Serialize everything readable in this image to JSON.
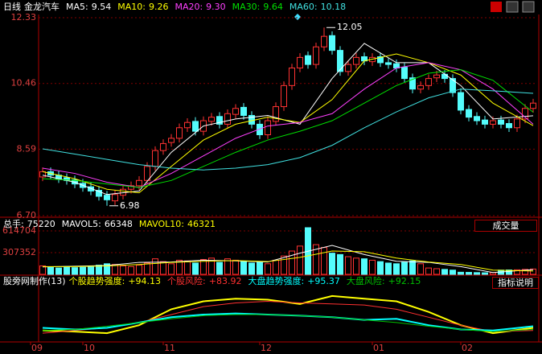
{
  "chart_data": [
    {
      "type": "candlestick",
      "title": "日线",
      "stock": "金龙汽车",
      "open": [
        7.8,
        7.95,
        7.85,
        7.78,
        7.72,
        7.62,
        7.52,
        7.42,
        7.28,
        7.12,
        7.28,
        7.45,
        7.55,
        7.7,
        8.1,
        8.55,
        8.78,
        8.9,
        9.2,
        9.38,
        9.1,
        9.38,
        9.52,
        9.3,
        9.58,
        9.78,
        9.55,
        9.3,
        9.0,
        9.38,
        9.8,
        10.4,
        10.9,
        11.25,
        11.0,
        11.5,
        11.82,
        11.4,
        10.8,
        11.0,
        11.22,
        11.08,
        11.22,
        11.05,
        11.02,
        10.92,
        10.62,
        10.3,
        10.4,
        10.62,
        10.72,
        10.6,
        10.2,
        9.72,
        9.52,
        9.42,
        9.3,
        9.42,
        9.32,
        9.2,
        9.45,
        9.75
      ],
      "high": [
        8.07,
        8.07,
        7.97,
        7.9,
        7.84,
        7.74,
        7.64,
        7.54,
        7.4,
        7.42,
        7.57,
        7.67,
        7.82,
        8.22,
        8.67,
        8.87,
        9.02,
        9.32,
        9.47,
        9.5,
        9.52,
        9.62,
        9.64,
        9.72,
        9.87,
        9.9,
        9.67,
        9.42,
        9.52,
        9.92,
        10.52,
        11.02,
        11.32,
        11.37,
        11.62,
        12.05,
        11.94,
        11.52,
        11.12,
        11.32,
        11.34,
        11.32,
        11.34,
        11.17,
        11.14,
        11.04,
        10.74,
        10.52,
        10.72,
        10.82,
        10.84,
        10.72,
        10.32,
        9.84,
        9.64,
        9.54,
        9.52,
        9.54,
        9.44,
        9.57,
        9.87,
        10.02
      ],
      "low": [
        7.68,
        7.73,
        7.63,
        7.58,
        7.48,
        7.38,
        7.28,
        7.13,
        6.98,
        7.0,
        7.16,
        7.33,
        7.43,
        7.58,
        7.98,
        8.43,
        8.66,
        8.78,
        9.08,
        8.98,
        8.98,
        9.26,
        9.18,
        9.18,
        9.46,
        9.43,
        9.18,
        8.88,
        8.88,
        9.26,
        9.68,
        10.28,
        10.78,
        10.88,
        10.88,
        11.38,
        11.28,
        10.68,
        10.68,
        10.88,
        10.98,
        10.96,
        10.93,
        10.88,
        10.78,
        10.48,
        10.18,
        10.18,
        10.28,
        10.5,
        10.48,
        10.08,
        9.58,
        9.38,
        9.28,
        9.18,
        9.18,
        9.18,
        9.08,
        9.08,
        9.33,
        9.63
      ],
      "close": [
        7.95,
        7.85,
        7.75,
        7.7,
        7.6,
        7.5,
        7.4,
        7.25,
        7.15,
        7.3,
        7.45,
        7.55,
        7.7,
        8.1,
        8.55,
        8.75,
        8.9,
        9.2,
        9.35,
        9.1,
        9.4,
        9.5,
        9.3,
        9.6,
        9.75,
        9.55,
        9.3,
        9.0,
        9.4,
        9.8,
        10.4,
        10.9,
        11.2,
        11.0,
        11.5,
        11.8,
        11.4,
        10.8,
        11.0,
        11.2,
        11.1,
        11.2,
        11.05,
        11.0,
        10.9,
        10.6,
        10.3,
        10.4,
        10.6,
        10.7,
        10.6,
        10.2,
        9.7,
        9.5,
        9.4,
        9.3,
        9.4,
        9.3,
        9.2,
        9.45,
        9.75,
        9.9
      ],
      "up_color": "#ff3232",
      "down_color": "#54fcfc",
      "xlim": [
        -0.5,
        61.5
      ],
      "ylim": [
        6.7,
        12.33
      ],
      "yticks": [
        {
          "value": 6.7,
          "label": "6.70"
        },
        8.59,
        10.46,
        12.33
      ],
      "grid": true,
      "ma": [
        {
          "name": "MA5:",
          "color": "#ffffff",
          "x": [
            0,
            4,
            8,
            12,
            16,
            20,
            24,
            28,
            32,
            36,
            40,
            44,
            48,
            52,
            56,
            61
          ],
          "values": [
            7.85,
            7.65,
            7.3,
            7.4,
            8.5,
            9.25,
            9.45,
            9.55,
            9.3,
            10.6,
            11.6,
            11.05,
            11.05,
            10.4,
            9.45,
            9.54
          ]
        },
        {
          "name": "MA10:",
          "color": "#ffff00",
          "x": [
            0,
            4,
            8,
            12,
            16,
            20,
            24,
            28,
            32,
            36,
            40,
            44,
            48,
            52,
            56,
            61
          ],
          "values": [
            7.95,
            7.75,
            7.45,
            7.35,
            8.1,
            8.85,
            9.3,
            9.5,
            9.35,
            10.0,
            11.1,
            11.3,
            11.05,
            10.7,
            9.9,
            9.26
          ]
        },
        {
          "name": "MA20:",
          "color": "#ff40ff",
          "x": [
            0,
            4,
            8,
            12,
            16,
            20,
            24,
            28,
            32,
            36,
            40,
            44,
            48,
            52,
            56,
            61
          ],
          "values": [
            8.05,
            7.9,
            7.65,
            7.5,
            7.9,
            8.4,
            8.9,
            9.25,
            9.35,
            9.6,
            10.3,
            10.9,
            11.05,
            10.85,
            10.3,
            9.3
          ],
          "value_labels": [
            null,
            null,
            null,
            null,
            null,
            null,
            null,
            null,
            null,
            null,
            null,
            null,
            null,
            null,
            null,
            "9.30"
          ]
        },
        {
          "name": "MA30:",
          "color": "#00e000",
          "x": [
            0,
            4,
            8,
            12,
            16,
            20,
            24,
            28,
            32,
            36,
            40,
            44,
            48,
            52,
            56,
            61
          ],
          "values": [
            7.75,
            7.7,
            7.6,
            7.5,
            7.7,
            8.1,
            8.5,
            8.85,
            9.1,
            9.4,
            9.9,
            10.4,
            10.75,
            10.85,
            10.55,
            9.64
          ]
        },
        {
          "name": "MA60:",
          "color": "#40e0e0",
          "x": [
            0,
            4,
            8,
            12,
            16,
            20,
            24,
            28,
            32,
            36,
            40,
            44,
            48,
            52,
            56,
            61
          ],
          "values": [
            8.6,
            8.45,
            8.3,
            8.15,
            8.05,
            8.0,
            8.05,
            8.15,
            8.35,
            8.7,
            9.2,
            9.65,
            10.05,
            10.3,
            10.25,
            10.18
          ]
        }
      ]
    },
    {
      "type": "bar",
      "title": "总手:",
      "button": "成交量",
      "values": [
        120000,
        100000,
        90000,
        110000,
        95000,
        100000,
        105000,
        130000,
        150000,
        140000,
        120000,
        110000,
        130000,
        160000,
        220000,
        180000,
        150000,
        200000,
        190000,
        160000,
        210000,
        230000,
        170000,
        220000,
        200000,
        180000,
        160000,
        170000,
        150000,
        200000,
        260000,
        330000,
        400000,
        660000,
        420000,
        380000,
        300000,
        280000,
        250000,
        230000,
        220000,
        200000,
        180000,
        160000,
        150000,
        170000,
        190000,
        150000,
        90000,
        80000,
        70000,
        60000,
        30000,
        28000,
        25000,
        22000,
        26000,
        60000,
        62000,
        64000,
        70000,
        75220
      ],
      "ylim": [
        0,
        774000
      ],
      "yticks": [
        307352,
        614704
      ],
      "grid": true,
      "series": [
        {
          "name": "MAVOL5:",
          "color": "#ffffff",
          "x": [
            0,
            4,
            8,
            12,
            16,
            20,
            24,
            28,
            32,
            36,
            40,
            44,
            48,
            52,
            56,
            61
          ],
          "values": [
            105000,
            115000,
            125000,
            170000,
            175000,
            200000,
            190000,
            175000,
            300000,
            410000,
            280000,
            185000,
            170000,
            110000,
            26200,
            66348
          ]
        },
        {
          "name": "MAVOL10:",
          "color": "#ffff00",
          "x": [
            0,
            4,
            8,
            12,
            16,
            20,
            24,
            28,
            32,
            36,
            40,
            44,
            48,
            52,
            56,
            61
          ],
          "values": [
            110000,
            110000,
            120000,
            140000,
            170000,
            185000,
            195000,
            180000,
            240000,
            330000,
            320000,
            230000,
            175000,
            140000,
            60000,
            46321
          ]
        }
      ]
    },
    {
      "type": "line",
      "title": "股旁网制作(13)",
      "button": "指标说明",
      "ylim": [
        0,
        100
      ],
      "xticks": [
        {
          "value": -1.5,
          "label": "09"
        },
        {
          "value": 5,
          "label": "10"
        },
        {
          "value": 15,
          "label": "11"
        },
        {
          "value": 27,
          "label": "12"
        },
        {
          "value": 41,
          "label": "01"
        },
        {
          "value": 52,
          "label": "02"
        }
      ],
      "series": [
        {
          "name": "个股趋势强度:",
          "reading": "+94.13",
          "color": "#ffff00",
          "x": [
            0,
            4,
            8,
            12,
            16,
            20,
            24,
            28,
            32,
            36,
            40,
            44,
            48,
            52,
            56,
            61
          ],
          "values": [
            20,
            18,
            15,
            30,
            60,
            75,
            80,
            78,
            70,
            85,
            80,
            75,
            55,
            30,
            15,
            25
          ]
        },
        {
          "name": "个股风险:",
          "reading": "+83.92",
          "color": "#ff3030",
          "x": [
            0,
            4,
            8,
            12,
            16,
            20,
            24,
            28,
            32,
            36,
            40,
            44,
            48,
            52,
            56,
            61
          ],
          "values": [
            15,
            20,
            25,
            35,
            50,
            65,
            72,
            75,
            72,
            70,
            68,
            60,
            45,
            30,
            18,
            20
          ]
        },
        {
          "name": "大盘趋势强度:",
          "reading": "+95.37",
          "color": "#00ffff",
          "x": [
            0,
            4,
            8,
            12,
            16,
            20,
            24,
            28,
            32,
            36,
            40,
            44,
            48,
            52,
            56,
            61
          ],
          "values": [
            25,
            22,
            25,
            35,
            45,
            50,
            52,
            50,
            48,
            45,
            40,
            42,
            30,
            22,
            20,
            28
          ]
        },
        {
          "name": "大盘风险:",
          "reading": "+92.15",
          "color": "#00c000",
          "x": [
            0,
            4,
            8,
            12,
            16,
            20,
            24,
            28,
            32,
            36,
            40,
            44,
            48,
            52,
            56,
            61
          ],
          "values": [
            20,
            22,
            28,
            35,
            42,
            48,
            50,
            50,
            48,
            45,
            40,
            35,
            28,
            22,
            18,
            22
          ]
        }
      ]
    }
  ]
}
